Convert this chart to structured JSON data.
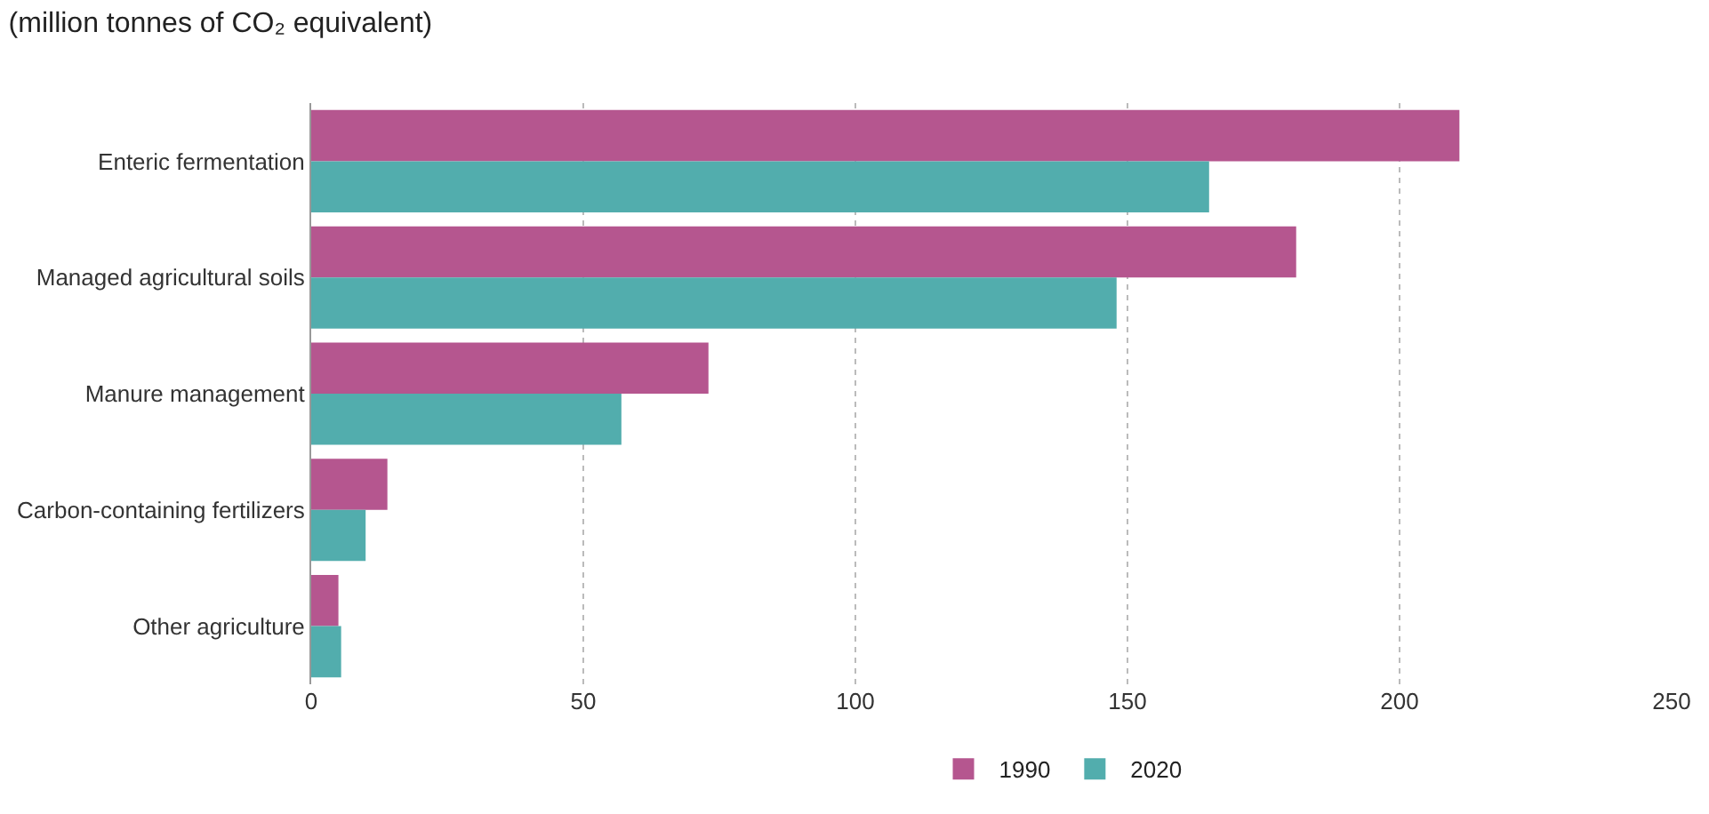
{
  "chart_data": {
    "type": "bar",
    "orientation": "horizontal",
    "title": "(million tonnes of CO₂ equivalent)",
    "categories": [
      "Enteric fermentation",
      "Managed agricultural soils",
      "Manure management",
      "Carbon-containing fertilizers",
      "Other agriculture"
    ],
    "series": [
      {
        "name": "1990",
        "color": "#b5568f",
        "values": [
          211,
          181,
          73,
          14,
          5
        ]
      },
      {
        "name": "2020",
        "color": "#52adad",
        "values": [
          165,
          148,
          57,
          10,
          5.5
        ]
      }
    ],
    "xlim": [
      0,
      250
    ],
    "xticks": [
      0,
      50,
      100,
      150,
      200,
      250
    ],
    "grid": "x",
    "legend": "bottom"
  }
}
